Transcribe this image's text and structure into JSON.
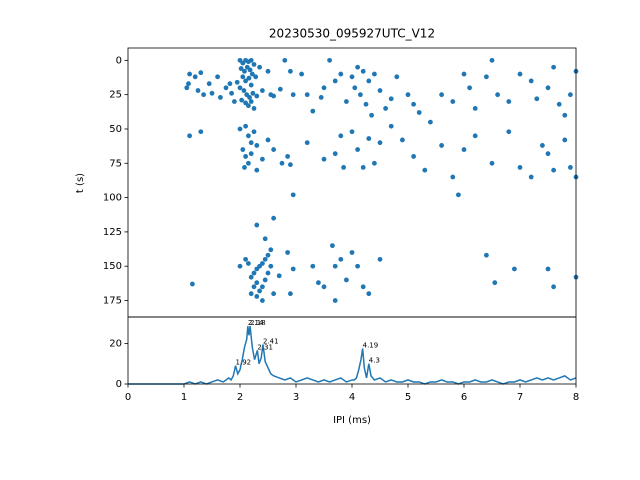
{
  "chart_data": [
    {
      "type": "scatter",
      "title": "20230530_095927UTC_V12",
      "ylabel": "t (s)",
      "color": "#1f77b4",
      "xlim": [
        0,
        8
      ],
      "ylim": [
        187,
        -9
      ],
      "yticks": [
        0,
        25,
        50,
        75,
        100,
        125,
        150,
        175
      ],
      "x": [
        2.0,
        2.05,
        2.1,
        2.15,
        2.2,
        2.25,
        2.02,
        2.08,
        2.13,
        2.18,
        2.22,
        2.05,
        2.1,
        2.16,
        2.2,
        2.0,
        2.07,
        2.12,
        2.17,
        2.23,
        2.03,
        2.1,
        2.15,
        2.2,
        2.25,
        1.95,
        2.28,
        2.3,
        2.35,
        2.4,
        2.5,
        2.55,
        2.6,
        2.72,
        2.8,
        2.9,
        2.95,
        1.05,
        1.08,
        1.1,
        1.2,
        1.25,
        1.3,
        1.35,
        1.45,
        1.5,
        1.6,
        1.65,
        1.75,
        1.82,
        1.85,
        1.9,
        1.1,
        1.3,
        3.1,
        3.2,
        3.3,
        3.45,
        3.5,
        3.6,
        3.7,
        3.8,
        3.9,
        4.0,
        4.05,
        4.1,
        4.15,
        4.2,
        4.25,
        4.3,
        4.35,
        4.4,
        4.5,
        4.6,
        4.7,
        4.8,
        5.0,
        5.1,
        5.2,
        5.4,
        5.6,
        5.8,
        6.0,
        6.1,
        6.2,
        6.4,
        6.5,
        6.6,
        6.8,
        7.0,
        7.2,
        7.3,
        7.5,
        7.6,
        7.7,
        7.8,
        7.9,
        8.0,
        2.0,
        2.1,
        2.15,
        2.2,
        2.05,
        2.1,
        2.15,
        2.2,
        2.08,
        2.25,
        2.3,
        2.4,
        2.5,
        2.6,
        2.75,
        2.85,
        2.9,
        2.95,
        2.3,
        3.2,
        3.5,
        3.7,
        3.8,
        3.85,
        4.0,
        4.1,
        4.2,
        4.3,
        4.4,
        4.5,
        4.7,
        4.9,
        5.1,
        5.3,
        5.6,
        5.8,
        5.9,
        6.0,
        6.2,
        6.5,
        6.8,
        7.0,
        7.2,
        7.4,
        7.5,
        7.6,
        7.8,
        7.9,
        8.0,
        2.3,
        2.45,
        2.6,
        2.55,
        2.5,
        2.45,
        2.4,
        2.35,
        2.3,
        2.25,
        2.2,
        2.3,
        2.25,
        2.35,
        2.3,
        2.4,
        2.45,
        2.5,
        2.55,
        2.6,
        2.15,
        2.1,
        2.0,
        2.2,
        2.4,
        2.7,
        2.85,
        2.95,
        2.9,
        1.15,
        3.3,
        3.4,
        3.5,
        3.65,
        3.7,
        3.8,
        3.9,
        4.1,
        4.2,
        4.3,
        4.0,
        4.5,
        6.4,
        6.55,
        6.9,
        7.5,
        7.6,
        8.0,
        3.7
      ],
      "values": [
        0,
        2,
        0,
        1,
        0,
        3,
        6,
        8,
        5,
        7,
        10,
        12,
        15,
        13,
        18,
        20,
        22,
        25,
        27,
        24,
        29,
        31,
        33,
        30,
        35,
        16,
        12,
        26,
        5,
        22,
        8,
        25,
        26,
        21,
        0,
        8,
        25,
        20,
        17,
        10,
        12,
        22,
        9,
        25,
        17,
        24,
        12,
        27,
        20,
        17,
        24,
        30,
        55,
        52,
        10,
        25,
        37,
        27,
        20,
        0,
        15,
        10,
        30,
        12,
        20,
        5,
        25,
        8,
        32,
        15,
        40,
        10,
        22,
        35,
        28,
        12,
        25,
        32,
        38,
        45,
        25,
        30,
        10,
        20,
        35,
        12,
        0,
        25,
        30,
        10,
        15,
        28,
        20,
        5,
        32,
        40,
        25,
        8,
        50,
        48,
        55,
        60,
        65,
        70,
        75,
        68,
        78,
        52,
        62,
        72,
        58,
        65,
        75,
        70,
        76,
        98,
        80,
        60,
        72,
        68,
        55,
        78,
        52,
        65,
        78,
        57,
        75,
        60,
        48,
        58,
        70,
        80,
        62,
        85,
        98,
        65,
        55,
        75,
        52,
        78,
        85,
        62,
        68,
        80,
        58,
        78,
        85,
        120,
        130,
        115,
        138,
        142,
        145,
        148,
        150,
        152,
        155,
        158,
        162,
        165,
        168,
        172,
        175,
        160,
        155,
        150,
        170,
        148,
        145,
        150,
        170,
        165,
        157,
        140,
        152,
        170,
        163,
        150,
        162,
        165,
        135,
        150,
        145,
        160,
        150,
        165,
        170,
        140,
        145,
        142,
        162,
        152,
        152,
        165,
        158,
        175
      ]
    },
    {
      "type": "line",
      "xlabel": "IPI (ms)",
      "color": "#1f77b4",
      "xlim": [
        0,
        8
      ],
      "ylim": [
        0,
        33
      ],
      "xticks": [
        0,
        1,
        2,
        3,
        4,
        5,
        6,
        7,
        8
      ],
      "yticks": [
        0,
        20
      ],
      "x": [
        0,
        0.5,
        1.0,
        1.1,
        1.2,
        1.3,
        1.4,
        1.5,
        1.6,
        1.7,
        1.8,
        1.84,
        1.88,
        1.92,
        1.96,
        2.0,
        2.04,
        2.08,
        2.12,
        2.14,
        2.16,
        2.18,
        2.22,
        2.26,
        2.31,
        2.34,
        2.38,
        2.41,
        2.45,
        2.5,
        2.55,
        2.6,
        2.7,
        2.8,
        2.9,
        3.0,
        3.1,
        3.2,
        3.3,
        3.4,
        3.5,
        3.6,
        3.7,
        3.8,
        3.9,
        4.0,
        4.04,
        4.08,
        4.12,
        4.16,
        4.19,
        4.22,
        4.26,
        4.3,
        4.34,
        4.4,
        4.5,
        4.6,
        4.7,
        4.8,
        4.9,
        5.0,
        5.1,
        5.2,
        5.3,
        5.4,
        5.5,
        5.6,
        5.7,
        5.8,
        5.9,
        6.0,
        6.1,
        6.2,
        6.3,
        6.4,
        6.5,
        6.6,
        6.7,
        6.8,
        6.9,
        7.0,
        7.1,
        7.2,
        7.3,
        7.4,
        7.5,
        7.6,
        7.7,
        7.8,
        7.9,
        8.0
      ],
      "values": [
        0,
        0,
        0,
        1,
        0,
        1,
        0,
        1,
        2,
        1,
        3,
        2,
        4,
        9,
        5,
        7,
        12,
        18,
        22,
        28.5,
        24,
        28.5,
        18,
        12,
        16.6,
        10,
        13,
        19.5,
        11,
        8,
        5,
        4,
        3,
        2,
        3,
        1,
        2,
        3,
        2,
        1,
        2,
        1,
        2,
        3,
        1,
        2,
        2,
        3,
        7,
        12,
        17.5,
        8,
        3,
        10,
        4,
        2,
        3,
        1,
        2,
        1,
        1,
        2,
        1,
        1,
        0,
        1,
        1,
        2,
        1,
        1,
        0,
        1,
        1,
        2,
        1,
        1,
        2,
        1,
        0,
        1,
        1,
        2,
        1,
        2,
        3,
        2,
        3,
        2,
        3,
        4,
        2,
        3
      ],
      "annotations": [
        {
          "label": "2.14",
          "x": 2.14,
          "y": 28.5
        },
        {
          "label": "2.18",
          "x": 2.18,
          "y": 28.5
        },
        {
          "label": "2.31",
          "x": 2.31,
          "y": 16.6
        },
        {
          "label": "2.41",
          "x": 2.41,
          "y": 19.5
        },
        {
          "label": "1.92",
          "x": 1.92,
          "y": 9
        },
        {
          "label": "4.19",
          "x": 4.19,
          "y": 17.5
        },
        {
          "label": "4.3",
          "x": 4.3,
          "y": 10
        }
      ]
    }
  ]
}
